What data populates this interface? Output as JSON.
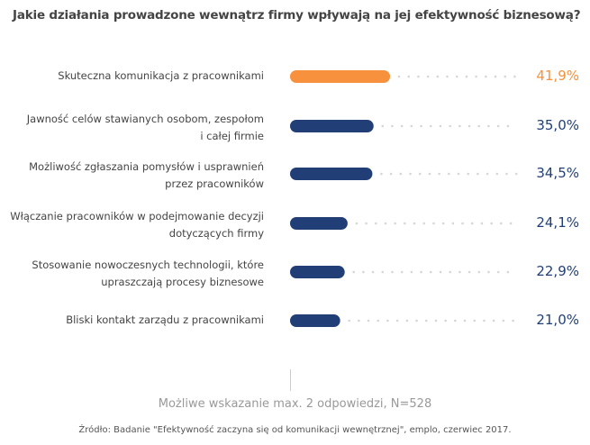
{
  "chart_data": {
    "type": "bar",
    "orientation": "horizontal",
    "title": "Jakie działania prowadzone wewnątrz firmy wpływają na jej efektywność biznesową?",
    "categories": [
      "Skuteczna komunikacja z pracownikami",
      "Jawność celów stawianych osobom, zespołom i całej firmie",
      "Możliwość zgłaszania pomysłów i usprawnień przez pracowników",
      "Włączanie pracowników w podejmowanie decyzji dotyczących firmy",
      "Stosowanie nowoczesnych technologii, które upraszczają procesy biznesowe",
      "Bliski kontakt zarządu z pracownikami"
    ],
    "label_lines": [
      [
        "Skuteczna komunikacja z pracownikami"
      ],
      [
        "Jawność celów stawianych osobom, zespołom",
        "i całej firmie"
      ],
      [
        "Możliwość zgłaszania pomysłów i usprawnień",
        "przez pracowników"
      ],
      [
        "Włączanie pracowników w podejmowanie decyzji",
        "dotyczących firmy"
      ],
      [
        "Stosowanie nowoczesnych technologii, które",
        "upraszczają procesy biznesowe"
      ],
      [
        "Bliski kontakt zarządu z pracownikami"
      ]
    ],
    "values": [
      41.9,
      35.0,
      34.5,
      24.1,
      22.9,
      21.0
    ],
    "value_labels": [
      "41,9%",
      "35,0%",
      "34,5%",
      "24,1%",
      "22,9%",
      "21,0%"
    ],
    "unit": "%",
    "highlight_color": "#F7913D",
    "bar_color": "#213F76",
    "grid": false,
    "legend": "none"
  },
  "note": "Możliwe wskazanie max. 2 odpowiedzi, N=528",
  "source": "Źródło: Badanie \"Efektywność zaczyna się od komunikacji wewnętrznej\", emplo, czerwiec 2017."
}
